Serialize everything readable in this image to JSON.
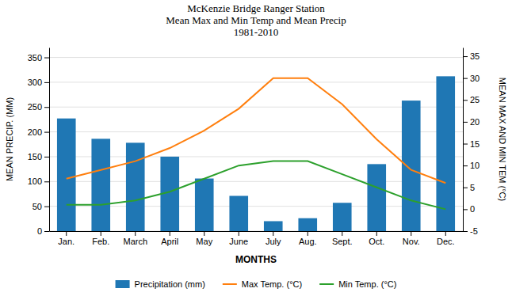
{
  "chart_data": {
    "type": "bar",
    "title": "McKenzie Bridge Ranger Station\nMean Max and Min Temp and Mean Precip\n1981-2010",
    "xlabel": "MONTHS",
    "ylabel": "MEAN PRECIP. (MM)",
    "y2label": "MEAN MAX AND MIN TEM (°C)",
    "categories": [
      "Jan.",
      "Feb.",
      "March",
      "April",
      "May",
      "June",
      "July",
      "Aug.",
      "Sept.",
      "Oct.",
      "Nov.",
      "Dec."
    ],
    "series": [
      {
        "name": "Precipitation (mm)",
        "type": "bar",
        "values": [
          227,
          186,
          178,
          150,
          106,
          71,
          20,
          26,
          57,
          135,
          263,
          312
        ]
      },
      {
        "name": "Max Temp. (°C)",
        "type": "line",
        "axis": "y2",
        "values": [
          7,
          9,
          11,
          14,
          18,
          23,
          30,
          30,
          24,
          16,
          9,
          6
        ]
      },
      {
        "name": "Min Temp. (°C)",
        "type": "line",
        "axis": "y2",
        "values": [
          1,
          1,
          2,
          4,
          7,
          10,
          11,
          11,
          8,
          5,
          2,
          0
        ]
      }
    ],
    "ylim": [
      0,
      370
    ],
    "yticks": [
      0,
      50,
      100,
      150,
      200,
      250,
      300,
      350
    ],
    "y2lim": [
      -5,
      37
    ],
    "y2ticks": [
      -5,
      0,
      5,
      10,
      15,
      20,
      25,
      30,
      35
    ],
    "grid": true,
    "legend": "bottom"
  }
}
